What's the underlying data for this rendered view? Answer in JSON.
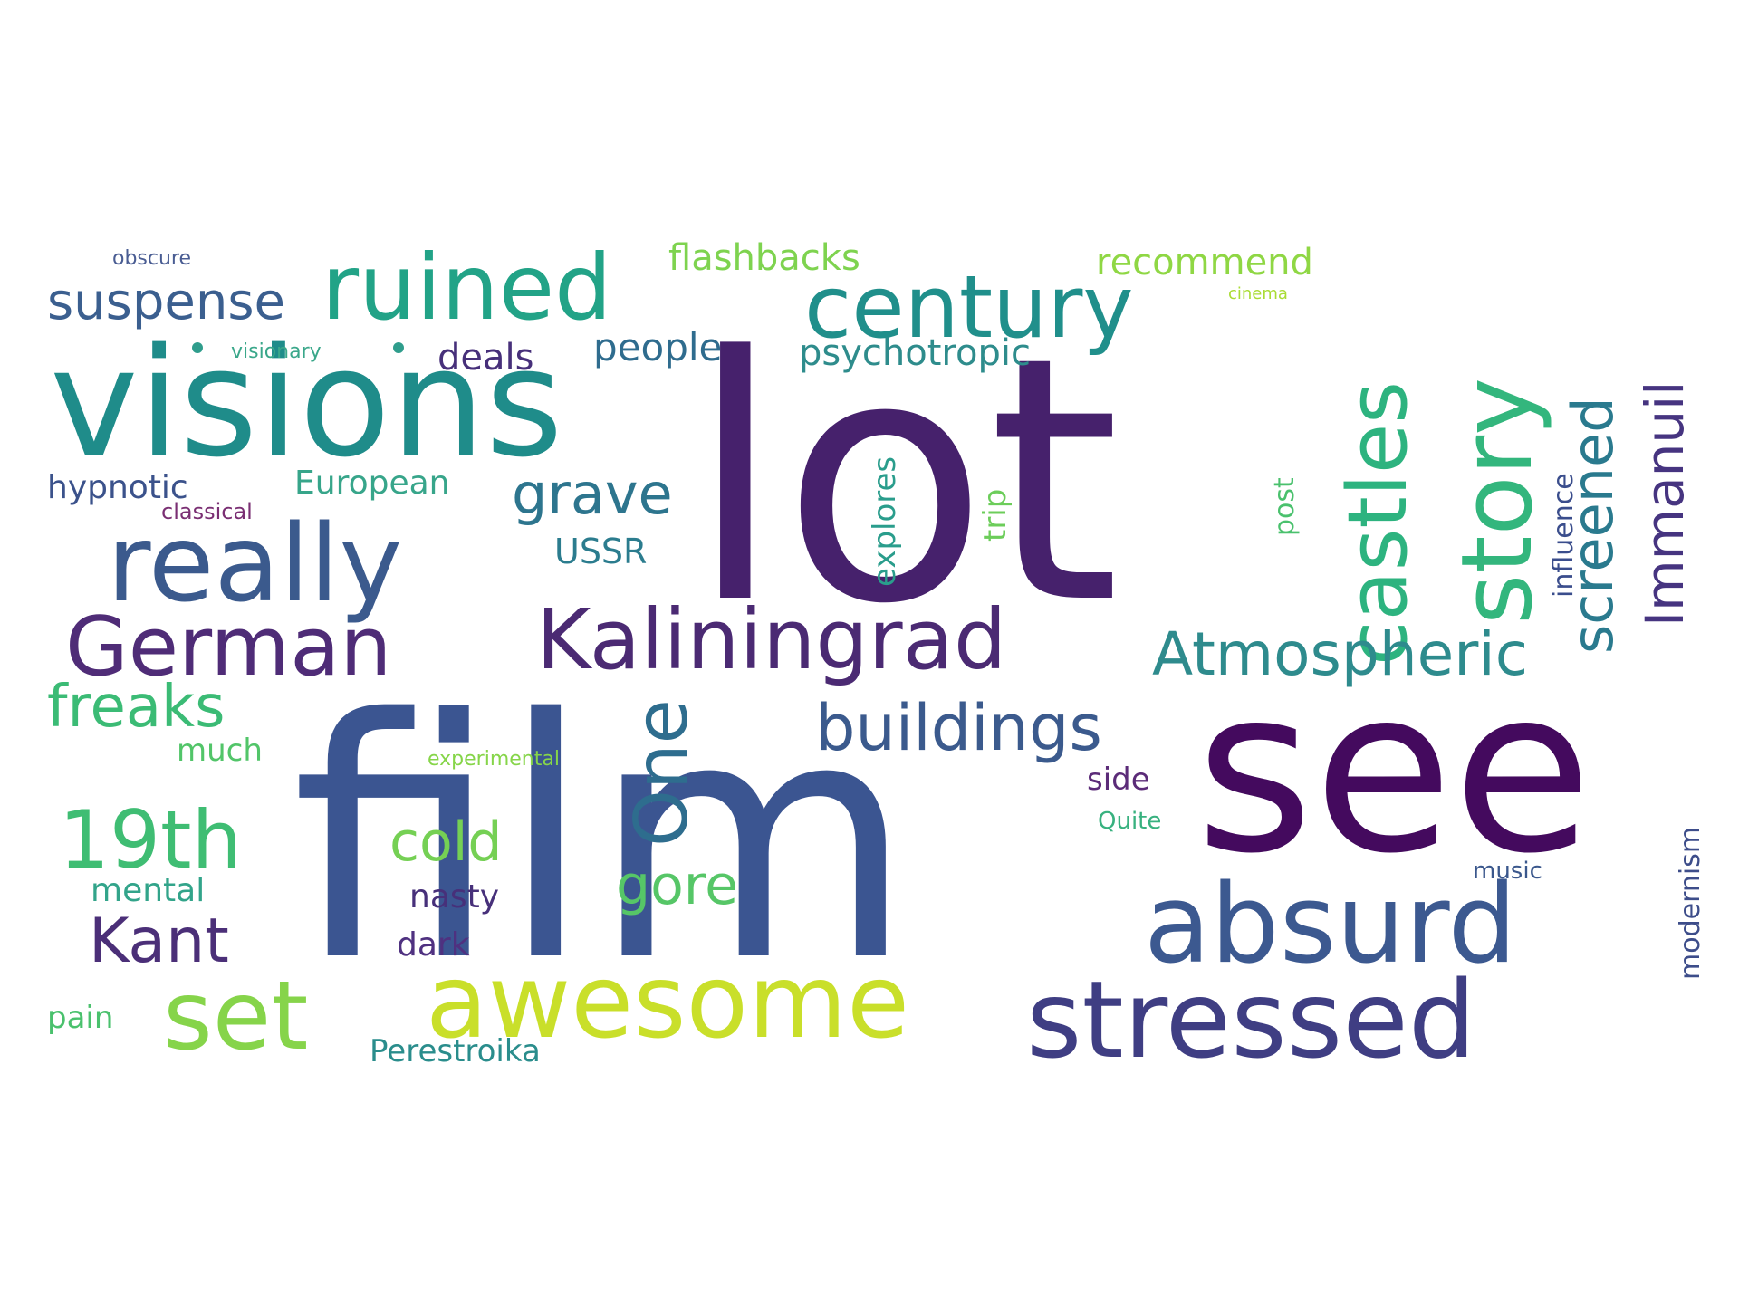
{
  "words": [
    {
      "text": "lot",
      "color": "#46216c",
      "rotated": false
    },
    {
      "text": "film",
      "color": "#3b5591",
      "rotated": false
    },
    {
      "text": "see",
      "color": "#440a5e",
      "rotated": false
    },
    {
      "text": "visions",
      "color": "#1f8c8a",
      "rotated": false
    },
    {
      "text": "really",
      "color": "#3b5a8d",
      "rotated": false
    },
    {
      "text": "ruined",
      "color": "#22a387",
      "rotated": false
    },
    {
      "text": "century",
      "color": "#208f8b",
      "rotated": false
    },
    {
      "text": "story",
      "color": "#33b67d",
      "rotated": true
    },
    {
      "text": "castles",
      "color": "#2db37f",
      "rotated": true
    },
    {
      "text": "Kaliningrad",
      "color": "#4b2a73",
      "rotated": false
    },
    {
      "text": "German",
      "color": "#4f2c77",
      "rotated": false
    },
    {
      "text": "absurd",
      "color": "#3c5990",
      "rotated": false
    },
    {
      "text": "stressed",
      "color": "#3f3e83",
      "rotated": false
    },
    {
      "text": "awesome",
      "color": "#c9df2a",
      "rotated": false
    },
    {
      "text": "set",
      "color": "#86d44a",
      "rotated": false
    },
    {
      "text": "19th",
      "color": "#3fbd73",
      "rotated": false
    },
    {
      "text": "One",
      "color": "#2e6d8e",
      "rotated": true
    },
    {
      "text": "suspense",
      "color": "#3b5f8f",
      "rotated": false
    },
    {
      "text": "grave",
      "color": "#2d758e",
      "rotated": false
    },
    {
      "text": "Atmospheric",
      "color": "#2e8b8d",
      "rotated": false
    },
    {
      "text": "buildings",
      "color": "#3b5a8d",
      "rotated": false
    },
    {
      "text": "freaks",
      "color": "#3bbb75",
      "rotated": false
    },
    {
      "text": "Kant",
      "color": "#4b2f78",
      "rotated": false
    },
    {
      "text": "cold",
      "color": "#75d054",
      "rotated": false
    },
    {
      "text": "gore",
      "color": "#56c667",
      "rotated": false
    },
    {
      "text": "screened",
      "color": "#2a7a8e",
      "rotated": true
    },
    {
      "text": "Immanuil",
      "color": "#463480",
      "rotated": true
    },
    {
      "text": "flashbacks",
      "color": "#7ed34f",
      "rotated": false
    },
    {
      "text": "recommend",
      "color": "#8fd744",
      "rotated": false
    },
    {
      "text": "people",
      "color": "#2f6c8e",
      "rotated": false
    },
    {
      "text": "psychotropic",
      "color": "#2e8c8c",
      "rotated": false
    },
    {
      "text": "deals",
      "color": "#47307a",
      "rotated": false
    },
    {
      "text": "hypnotic",
      "color": "#3b528b",
      "rotated": false
    },
    {
      "text": "European",
      "color": "#37a58a",
      "rotated": false
    },
    {
      "text": "USSR",
      "color": "#2b7c8e",
      "rotated": false
    },
    {
      "text": "explores",
      "color": "#2a9d8c",
      "rotated": true
    },
    {
      "text": "trip",
      "color": "#6ccd5a",
      "rotated": true
    },
    {
      "text": "post",
      "color": "#4ac16d",
      "rotated": true
    },
    {
      "text": "influence",
      "color": "#3a4d8c",
      "rotated": true
    },
    {
      "text": "modernism",
      "color": "#3d4d8a",
      "rotated": true
    },
    {
      "text": "much",
      "color": "#52c569",
      "rotated": false
    },
    {
      "text": "experimental",
      "color": "#86d549",
      "rotated": false
    },
    {
      "text": "side",
      "color": "#5b2b78",
      "rotated": false
    },
    {
      "text": "Quite",
      "color": "#38b17f",
      "rotated": false
    },
    {
      "text": "music",
      "color": "#3a578c",
      "rotated": false
    },
    {
      "text": "mental",
      "color": "#32a48a",
      "rotated": false
    },
    {
      "text": "nasty",
      "color": "#47307a",
      "rotated": false
    },
    {
      "text": "dark",
      "color": "#4f3180",
      "rotated": false
    },
    {
      "text": "pain",
      "color": "#4ac16d",
      "rotated": false
    },
    {
      "text": "Perestroika",
      "color": "#2a8d8c",
      "rotated": false
    },
    {
      "text": "obscure",
      "color": "#4a5d93",
      "rotated": false
    },
    {
      "text": "visionary",
      "color": "#3aa78a",
      "rotated": false
    },
    {
      "text": "classical",
      "color": "#7a2f73",
      "rotated": false
    },
    {
      "text": "cinema",
      "color": "#a9dc34",
      "rotated": false
    }
  ],
  "dots": {
    "color": "#2f9d8c"
  }
}
